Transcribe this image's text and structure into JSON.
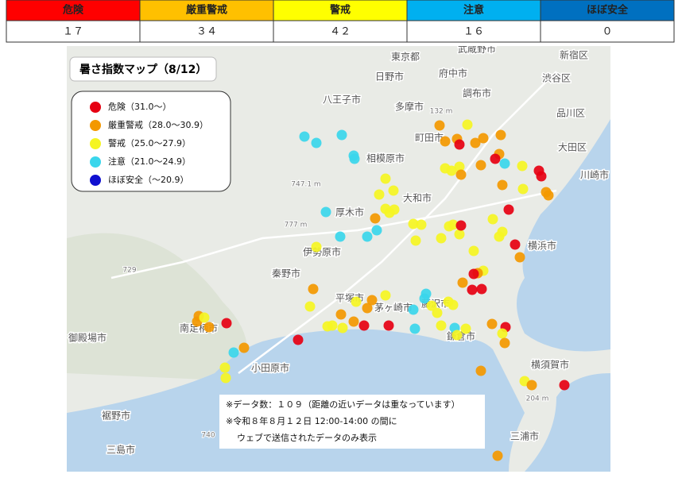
{
  "table": {
    "headers": [
      "危険",
      "厳重警戒",
      "警戒",
      "注意",
      "ほぼ安全"
    ],
    "counts": [
      "１７",
      "３４",
      "４２",
      "１６",
      "０"
    ]
  },
  "map": {
    "title": "暑さ指数マップ（8/12）",
    "legend": [
      "危険（31.0～）",
      "厳重警戒（28.0～30.9）",
      "警戒（25.0～27.9）",
      "注意（21.0～24.9）",
      "ほぼ安全（～20.9）"
    ],
    "labels": [
      {
        "text": "東京都"
      },
      {
        "text": "武蔵野市"
      },
      {
        "text": "新宿区"
      },
      {
        "text": "日野市"
      },
      {
        "text": "府中市"
      },
      {
        "text": "渋谷区"
      },
      {
        "text": "八王子市"
      },
      {
        "text": "多摩市"
      },
      {
        "text": "調布市"
      },
      {
        "text": "品川区"
      },
      {
        "text": "町田市"
      },
      {
        "text": "大田区"
      },
      {
        "text": "相模原市"
      },
      {
        "text": "川崎市"
      },
      {
        "text": "大和市"
      },
      {
        "text": "厚木市"
      },
      {
        "text": "横浜市"
      },
      {
        "text": "伊勢原市"
      },
      {
        "text": "秦野市"
      },
      {
        "text": "平塚市"
      },
      {
        "text": "茅ヶ崎市"
      },
      {
        "text": "藤沢市"
      },
      {
        "text": "南足柄市"
      },
      {
        "text": "御殿場市"
      },
      {
        "text": "小田原市"
      },
      {
        "text": "鎌倉市"
      },
      {
        "text": "横須賀市"
      },
      {
        "text": "裾野市"
      },
      {
        "text": "三浦市"
      },
      {
        "text": "三島市"
      }
    ],
    "elevations": [
      "132 m",
      "747.1 m",
      "777 m",
      "204 m",
      "729",
      "740"
    ],
    "notes": [
      "※データ数：１０９（距離の近いデータは重なっています）",
      "※令和８年８月１２日 12:00-14:00 の間に",
      "ウェブで送信されたデータのみ表示"
    ]
  }
}
